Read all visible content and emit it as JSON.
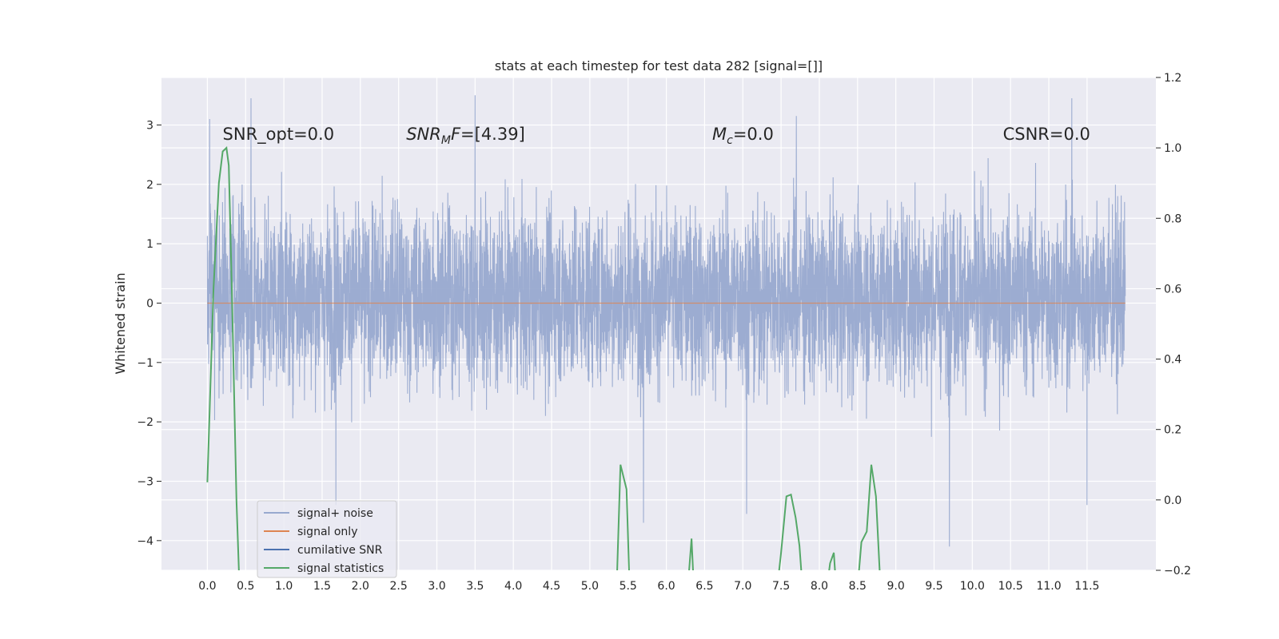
{
  "chart_data": {
    "type": "line",
    "title": "stats at each timestep for test data 282 [signal=[]]",
    "xlabel": "",
    "ylabel": "Whitened strain",
    "y2label": "",
    "xlim": [
      -0.6,
      12.4
    ],
    "ylim": [
      -4.5,
      3.8
    ],
    "y2lim": [
      -0.2,
      1.2
    ],
    "grid": true,
    "legend_position": "lower-left",
    "x_ticks": [
      "0.0",
      "0.5",
      "1.0",
      "1.5",
      "2.0",
      "2.5",
      "3.0",
      "3.5",
      "4.0",
      "4.5",
      "5.0",
      "5.5",
      "6.0",
      "6.5",
      "7.0",
      "7.5",
      "8.0",
      "8.5",
      "9.0",
      "9.5",
      "10.0",
      "10.5",
      "11.0",
      "11.5"
    ],
    "y_ticks": [
      "3",
      "2",
      "1",
      "0",
      "−1",
      "−2",
      "−3",
      "−4"
    ],
    "y_tick_values": [
      3,
      2,
      1,
      0,
      -1,
      -2,
      -3,
      -4
    ],
    "y2_ticks": [
      "1.2",
      "1.0",
      "0.8",
      "0.6",
      "0.4",
      "0.2",
      "0.0",
      "−0.2"
    ],
    "y2_tick_values": [
      1.2,
      1.0,
      0.8,
      0.6,
      0.4,
      0.2,
      0.0,
      -0.2
    ],
    "annotations": [
      {
        "prefix": "SNR_opt=0.0",
        "sub": "",
        "suffix": "",
        "x": 0.2
      },
      {
        "prefix": "SNR",
        "sub": "M",
        "suffix": "F=[4.39]",
        "x": 2.6,
        "italic": true
      },
      {
        "prefix": "M",
        "sub": "c",
        "suffix": "=0.0",
        "x": 6.6,
        "italic": true
      },
      {
        "prefix": "CSNR=0.0",
        "sub": "",
        "suffix": "",
        "x": 10.4
      }
    ],
    "annotation_y": 2.7,
    "series": [
      {
        "name": "signal+ noise",
        "color": "#98a9cf",
        "x_range": [
          0.0,
          12.0
        ],
        "typical_band": [
          -1.2,
          1.3
        ],
        "peaks": [
          {
            "x": 0.03,
            "y": 3.1
          },
          {
            "x": 0.57,
            "y": 3.45
          },
          {
            "x": 3.5,
            "y": 3.5
          },
          {
            "x": 7.7,
            "y": 3.15
          },
          {
            "x": 11.3,
            "y": 3.45
          },
          {
            "x": 1.68,
            "y": -3.4
          },
          {
            "x": 5.7,
            "y": -3.7
          },
          {
            "x": 7.05,
            "y": -3.55
          },
          {
            "x": 9.7,
            "y": -4.1
          },
          {
            "x": 11.5,
            "y": -3.4
          }
        ]
      },
      {
        "name": "signal only",
        "color": "#dd8452",
        "x": [
          0.0,
          12.0
        ],
        "y": [
          0.0,
          0.0
        ]
      },
      {
        "name": "cumilative SNR",
        "color": "#4c72b0",
        "x": [],
        "y": []
      },
      {
        "name": "signal statistics",
        "color": "#55a868",
        "axis": "right",
        "segments": [
          {
            "x": [
              0.0,
              0.08,
              0.15,
              0.2,
              0.25,
              0.28,
              0.32,
              0.38,
              0.42
            ],
            "y": [
              0.05,
              0.6,
              0.9,
              0.99,
              1.0,
              0.95,
              0.6,
              0.0,
              -0.25
            ]
          },
          {
            "x": [
              5.35,
              5.4,
              5.48,
              5.52
            ],
            "y": [
              -0.25,
              0.1,
              0.03,
              -0.25
            ]
          },
          {
            "x": [
              6.28,
              6.33,
              6.36
            ],
            "y": [
              -0.25,
              -0.11,
              -0.25
            ]
          },
          {
            "x": [
              7.45,
              7.5,
              7.57,
              7.63,
              7.69,
              7.74,
              7.78
            ],
            "y": [
              -0.25,
              -0.15,
              0.01,
              0.015,
              -0.05,
              -0.13,
              -0.25
            ]
          },
          {
            "x": [
              8.1,
              8.14,
              8.19,
              8.22
            ],
            "y": [
              -0.25,
              -0.18,
              -0.15,
              -0.25
            ]
          },
          {
            "x": [
              8.5,
              8.55,
              8.62,
              8.68,
              8.74,
              8.8
            ],
            "y": [
              -0.25,
              -0.12,
              -0.09,
              0.1,
              0.01,
              -0.25
            ]
          }
        ]
      }
    ],
    "colors": {
      "plot_background": "#eaeaf2",
      "grid": "#ffffff",
      "text": "#262626"
    }
  }
}
